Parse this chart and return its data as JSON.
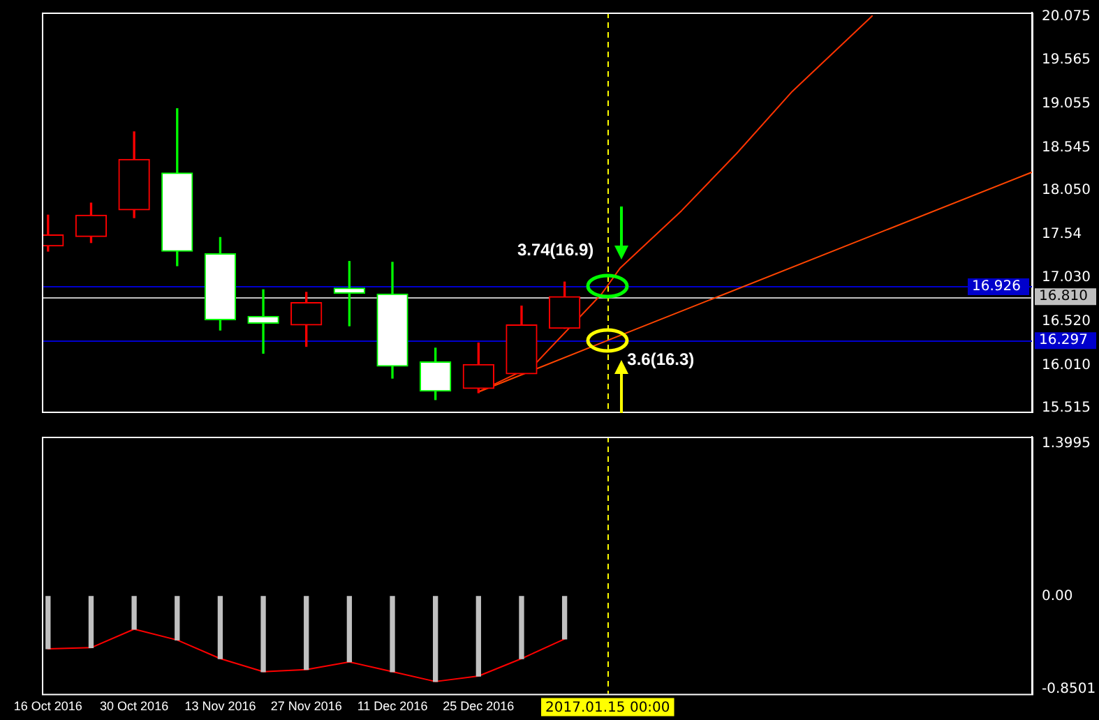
{
  "chart_data": [
    {
      "type": "candlestick",
      "x": [
        "2016-10-16",
        "2016-10-23",
        "2016-10-30",
        "2016-11-06",
        "2016-11-13",
        "2016-11-20",
        "2016-11-27",
        "2016-12-04",
        "2016-12-11",
        "2016-12-18",
        "2016-12-25",
        "2017-01-01",
        "2017-01-08"
      ],
      "ohlc": [
        [
          17.4,
          17.76,
          17.34,
          17.53
        ],
        [
          17.51,
          17.9,
          17.44,
          17.76
        ],
        [
          17.82,
          18.73,
          17.73,
          18.41
        ],
        [
          18.25,
          19.0,
          17.17,
          17.34
        ],
        [
          17.31,
          17.5,
          16.42,
          16.54
        ],
        [
          16.58,
          16.89,
          16.15,
          16.5
        ],
        [
          16.48,
          16.86,
          16.23,
          16.74
        ],
        [
          16.91,
          17.22,
          16.47,
          16.85
        ],
        [
          16.84,
          17.21,
          15.86,
          16.0
        ],
        [
          16.05,
          16.21,
          15.61,
          15.71
        ],
        [
          15.74,
          16.27,
          15.69,
          16.02
        ],
        [
          15.91,
          16.7,
          15.91,
          16.48
        ],
        [
          16.44,
          16.98,
          16.44,
          16.81
        ]
      ],
      "colors": [
        "#ff0000",
        "#ff0000",
        "#ff0000",
        "#00ff00",
        "#00ff00",
        "#00ff00",
        "#ff0000",
        "#00ff00",
        "#00ff00",
        "#00ff00",
        "#ff0000",
        "#ff0000",
        "#ff0000"
      ],
      "series": [
        {
          "type": "line",
          "color": "#ff3300",
          "x": [
            "2016-12-25",
            "2017-01-03",
            "2017-01-14",
            "2017-01-17",
            "2017-01-27",
            "2017-02-05",
            "2017-02-14",
            "2017-02-27"
          ],
          "values": [
            15.7,
            16.01,
            16.84,
            17.14,
            17.81,
            18.48,
            19.2,
            20.08
          ]
        },
        {
          "type": "line",
          "color": "#ff4500",
          "x": [
            "2016-12-25",
            "2017-01-15",
            "2017-03-25"
          ],
          "values": [
            15.7,
            16.3,
            18.26
          ]
        }
      ],
      "xlim": [
        "2016-10-15",
        "2017-03-25"
      ],
      "ylim": [
        15.47,
        20.12
      ],
      "yticks": [
        20.075,
        19.565,
        19.055,
        18.545,
        {
          "value": 18.05,
          "label": "18.050"
        },
        17.54,
        {
          "value": 17.03,
          "label": "17.030"
        },
        {
          "value": 16.52,
          "label": "16.520"
        },
        {
          "value": 16.01,
          "label": "16.010"
        },
        15.515
      ],
      "tick_labels": "y",
      "marker": "none",
      "ref_lines": [
        {
          "axis": "y",
          "value": 16.926,
          "label": "16.926",
          "color": "#0000cc"
        },
        {
          "axis": "y",
          "value": 16.81,
          "label": "16.810",
          "color": "#c0c0c0"
        },
        {
          "axis": "y",
          "value": 16.297,
          "label": "16.297",
          "color": "#0000cc"
        },
        {
          "axis": "x",
          "value": "2017-01-15",
          "label": null,
          "color": "#ffff00",
          "line_style": "dashed"
        }
      ],
      "annotations": [
        {
          "text": "3.74(16.9)",
          "x": "2017-01-15",
          "y": 16.926
        },
        {
          "text": "3.6(16.3)",
          "x": "2017-01-15",
          "y": 16.297
        }
      ]
    },
    {
      "type": "bar",
      "x": [
        "2016-10-16",
        "2016-10-23",
        "2016-10-30",
        "2016-11-06",
        "2016-11-13",
        "2016-11-20",
        "2016-11-27",
        "2016-12-04",
        "2016-12-11",
        "2016-12-18",
        "2016-12-25",
        "2017-01-01",
        "2017-01-08"
      ],
      "series": [
        {
          "type": "bar",
          "color": "#c0c0c0",
          "values": [
            -0.48,
            -0.47,
            -0.3,
            -0.4,
            -0.57,
            -0.69,
            -0.67,
            -0.6,
            -0.69,
            -0.78,
            -0.73,
            -0.57,
            -0.39
          ]
        },
        {
          "type": "line",
          "color": "#ff0000",
          "values": [
            -0.48,
            -0.47,
            -0.3,
            -0.4,
            -0.57,
            -0.69,
            -0.67,
            -0.6,
            -0.69,
            -0.78,
            -0.73,
            -0.57,
            -0.39
          ]
        }
      ],
      "xlim": [
        "2016-10-15",
        "2017-03-25"
      ],
      "ylim": [
        -0.892,
        1.462
      ],
      "yticks": [
        1.3995,
        {
          "value": 0,
          "label": "0.00"
        },
        -0.8501
      ],
      "xticks": [
        {
          "value": "2016-10-16",
          "label": "16 Oct 2016"
        },
        {
          "value": "2016-10-30",
          "label": "30 Oct 2016"
        },
        {
          "value": "2016-11-13",
          "label": "13 Nov 2016"
        },
        {
          "value": "2016-11-27",
          "label": "27 Nov 2016"
        },
        {
          "value": "2016-12-11",
          "label": "11 Dec 2016"
        },
        {
          "value": "2016-12-25",
          "label": "25 Dec 2016"
        }
      ],
      "marker": "none",
      "ref_lines": [
        {
          "axis": "x",
          "value": "2017-01-15",
          "label": "2017.01.15 00:00",
          "color": "#ffff00",
          "line_style": "dashed"
        }
      ]
    }
  ]
}
